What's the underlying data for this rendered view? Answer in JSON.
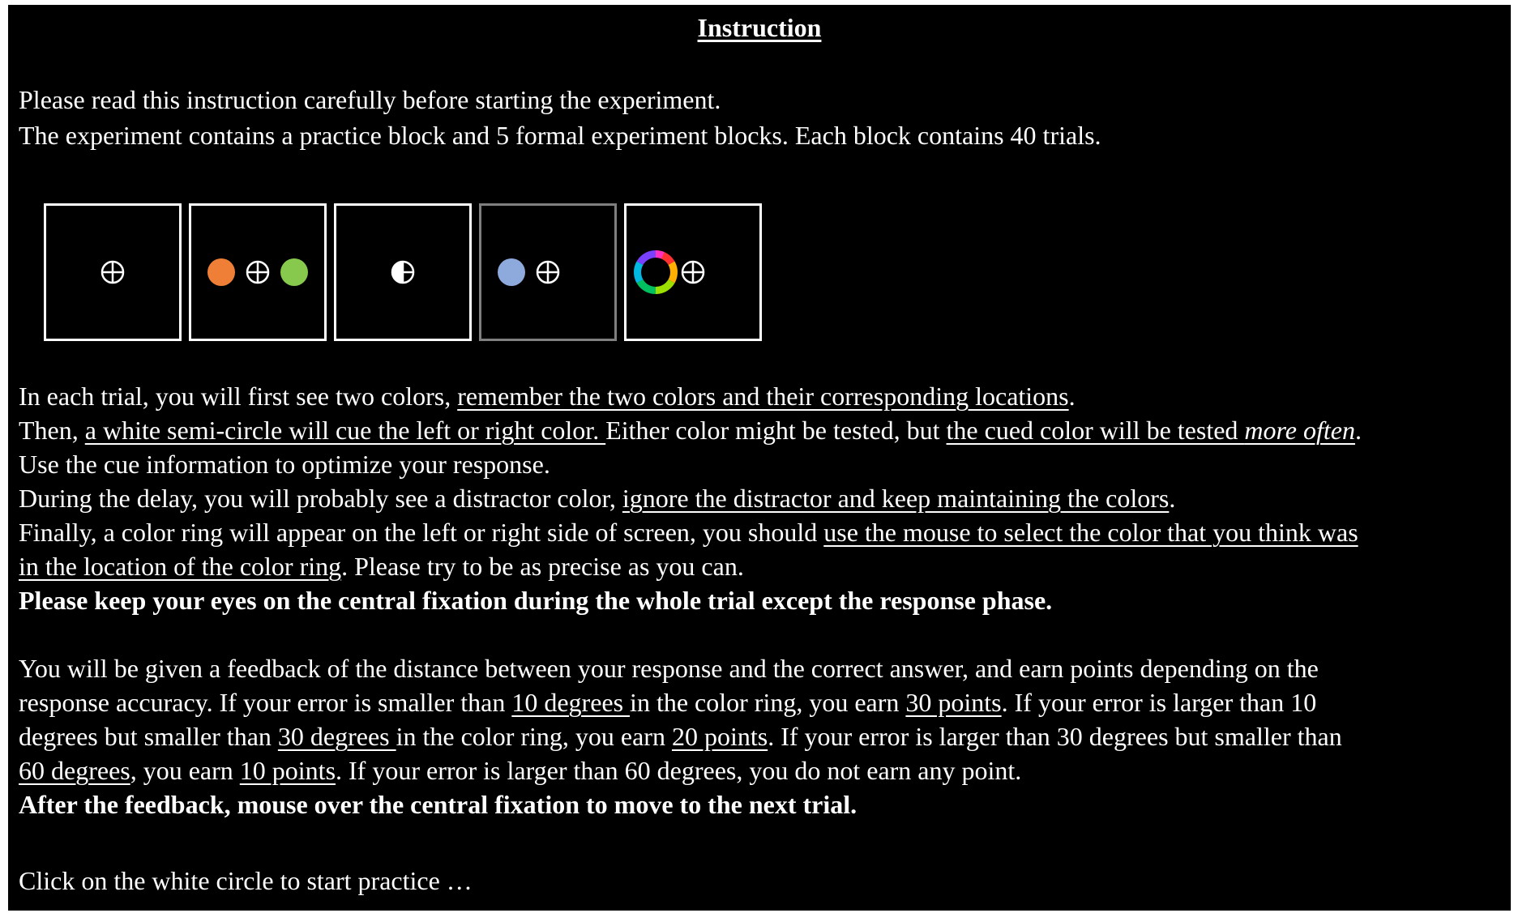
{
  "title": "Instruction",
  "intro": {
    "line1": "Please read this instruction carefully before starting the experiment.",
    "line2": "The experiment contains a practice block and 5 formal experiment blocks. Each block contains 40 trials."
  },
  "frames": {
    "colors": {
      "frame_border": "#ffffff",
      "distractor_frame_border": "#7f7f7f",
      "memory_left": "#ef7f36",
      "memory_right": "#86c94d",
      "distractor": "#8eaadc",
      "fixation": "#ffffff"
    },
    "icons": [
      "fixation-cross-icon",
      "memory-colors",
      "semicircle-cue-icon",
      "distractor-color",
      "color-ring-icon"
    ]
  },
  "para1": {
    "l1a": "In each trial, you will first see two colors, ",
    "l1b": "remember the two colors and their corresponding locations",
    "l1c": ".",
    "l2a": "Then, ",
    "l2b": "a white semi-circle will cue the left or right color. ",
    "l2c": "Either color might be tested, but ",
    "l2d": "the cued color will be tested ",
    "l2e": "more often",
    "l2f": ".",
    "l3": "Use the cue information to optimize your response.",
    "l4a": "During the delay, you will probably see a distractor color, ",
    "l4b": "ignore the distractor and keep maintaining the colors",
    "l4c": ".",
    "l5a": "Finally, a color ring will appear on the left or right side of screen, you should ",
    "l5b": "use the mouse to select the color that you think was",
    "l6a": "in the location of the color ring",
    "l6b": ". Please try to be as precise as you can.",
    "l7": "Please keep your eyes on the central fixation during the whole trial except the response phase."
  },
  "para2": {
    "l1": "You will be given a feedback of the distance between your response and the correct answer, and earn points depending on the",
    "l2a": "response accuracy. If your error is smaller than ",
    "l2b": "10 degrees ",
    "l2c": "in the color ring, you earn ",
    "l2d": "30 points",
    "l2e": ". If your error is larger than 10",
    "l3a": "degrees but smaller than ",
    "l3b": "30 degrees ",
    "l3c": "in the color ring, you earn ",
    "l3d": "20 points",
    "l3e": ". If your error is larger than 30 degrees but smaller than",
    "l4a": "60 degrees",
    "l4b": ", you earn ",
    "l4c": "10 points",
    "l4d": ". If your error is larger than 60 degrees, you do not earn any point.",
    "l5": "After the feedback, mouse over the central fixation to move to the next trial."
  },
  "footer": {
    "start_prompt": "Click on the white circle to start practice …"
  }
}
